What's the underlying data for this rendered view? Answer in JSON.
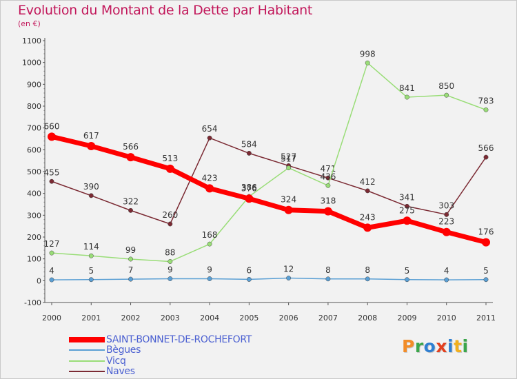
{
  "header": {
    "title": "Evolution du Montant de la Dette par Habitant",
    "subtitle": "(en €)"
  },
  "logo": {
    "text": "Proxiti",
    "colors": [
      "#f28c28",
      "#3aa64a",
      "#2f7fd1",
      "#e2401f",
      "#2f7fd1",
      "#f2b01e",
      "#3aa64a"
    ]
  },
  "chart_data": {
    "type": "line",
    "title": "Evolution du Montant de la Dette par Habitant",
    "subtitle": "(en €)",
    "x": [
      "2000",
      "2001",
      "2002",
      "2003",
      "2004",
      "2005",
      "2006",
      "2007",
      "2008",
      "2009",
      "2010",
      "2011"
    ],
    "ylim": [
      -100,
      1100
    ],
    "yticks": [
      -100,
      0,
      100,
      200,
      300,
      400,
      500,
      600,
      700,
      800,
      900,
      1000,
      1100
    ],
    "grid": false,
    "legend": "bottom-left",
    "series": [
      {
        "name": "Naves",
        "color": "#7b2a33",
        "values": [
          455,
          390,
          322,
          260,
          654,
          584,
          527,
          471,
          412,
          341,
          303,
          566
        ]
      },
      {
        "name": "Vicq",
        "color": "#99dd77",
        "values": [
          127,
          114,
          99,
          88,
          168,
          386,
          517,
          436,
          998,
          841,
          850,
          783
        ]
      },
      {
        "name": "Bègues",
        "color": "#5a9fd4",
        "values": [
          4,
          5,
          7,
          9,
          9,
          6,
          12,
          8,
          8,
          5,
          4,
          5
        ]
      },
      {
        "name": "SAINT-BONNET-DE-ROCHEFORT",
        "color": "#ff0000",
        "values": [
          660,
          617,
          566,
          513,
          423,
          376,
          324,
          318,
          243,
          275,
          223,
          176
        ]
      }
    ],
    "legend_order": [
      "SAINT-BONNET-DE-ROCHEFORT",
      "Bègues",
      "Vicq",
      "Naves"
    ]
  }
}
